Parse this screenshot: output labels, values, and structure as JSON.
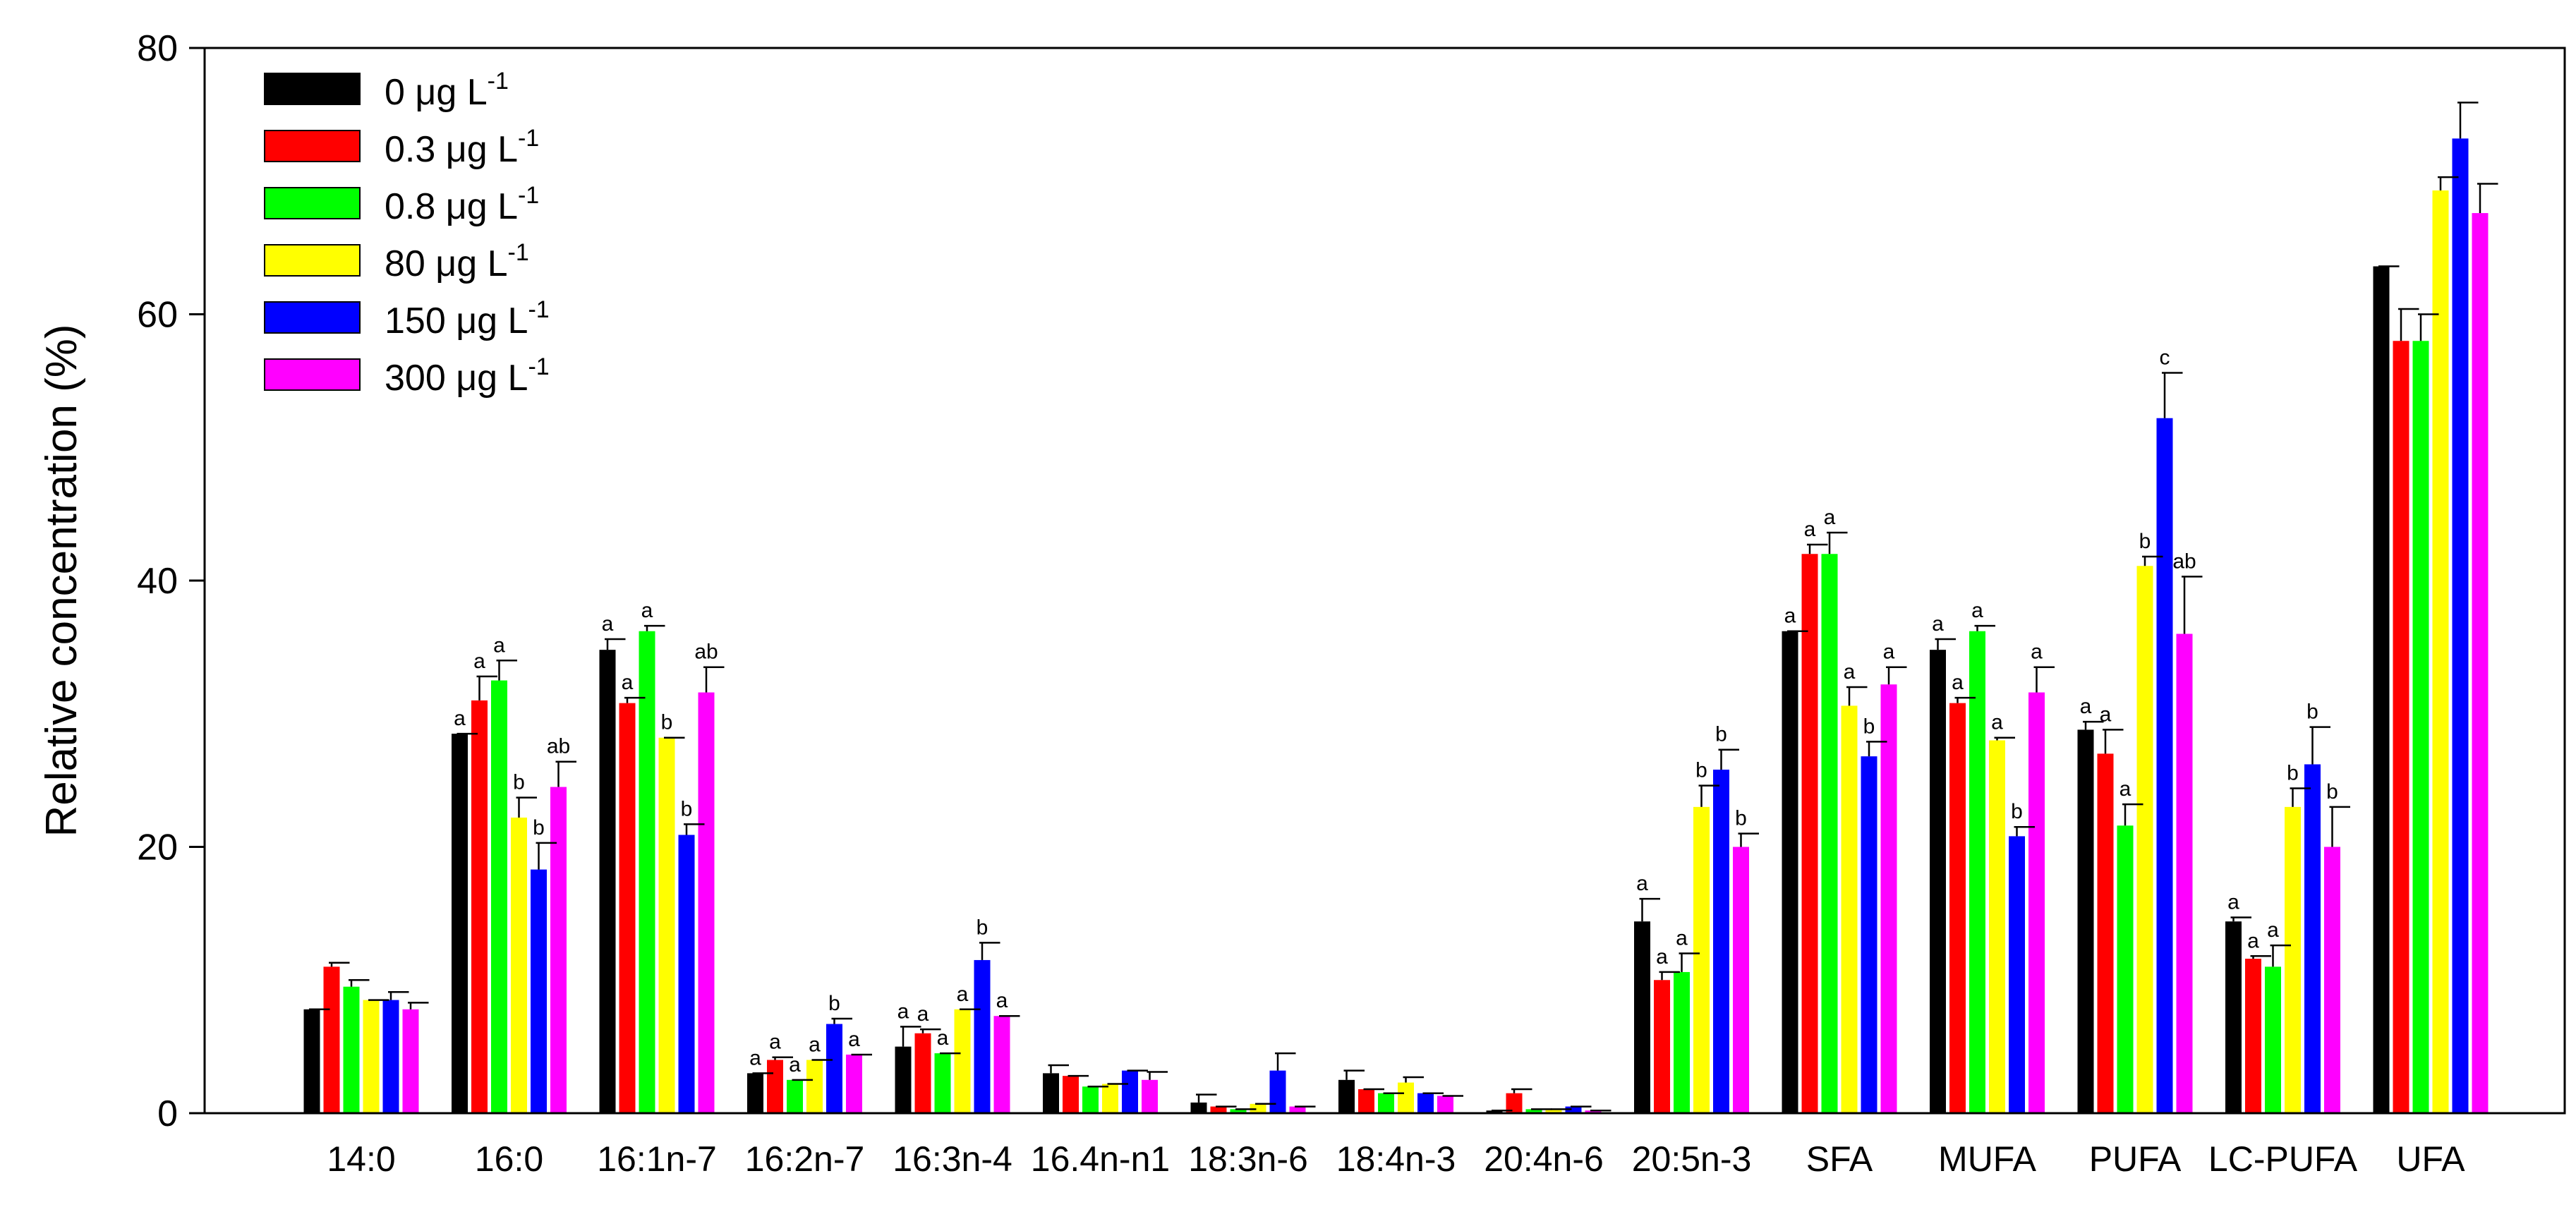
{
  "chart_data": {
    "type": "bar",
    "title": "",
    "xlabel": "",
    "ylabel": "Relative concentration (%)",
    "ylim": [
      0,
      80
    ],
    "yticks": [
      0,
      20,
      40,
      60,
      80
    ],
    "grid": false,
    "legend_position": "top-left",
    "categories": [
      "14:0",
      "16:0",
      "16:1n-7",
      "16:2n-7",
      "16:3n-4",
      "16.4n-n1",
      "18:3n-6",
      "18:4n-3",
      "20:4n-6",
      "20:5n-3",
      "SFA",
      "MUFA",
      "PUFA",
      "LC-PUFA",
      "UFA"
    ],
    "series": [
      {
        "name": "0 μg L-1",
        "legend_main": "0 μg L",
        "legend_sup": "-1",
        "color": "#000000",
        "values": [
          7.8,
          28.5,
          34.8,
          3.0,
          5.0,
          3.0,
          0.8,
          2.5,
          0.2,
          14.4,
          36.2,
          34.8,
          28.8,
          14.4,
          63.6
        ],
        "errors": [
          0.0,
          0.0,
          0.8,
          0.0,
          1.5,
          0.6,
          0.6,
          0.7,
          0.0,
          1.7,
          0.0,
          0.8,
          0.6,
          0.3,
          0.0
        ],
        "labels": [
          "",
          "a",
          "a",
          "a",
          "a",
          "",
          "",
          "",
          "",
          "a",
          "a",
          "a",
          "a",
          "a",
          ""
        ]
      },
      {
        "name": "0.3 μg L-1",
        "legend_main": "0.3 μg L",
        "legend_sup": "-1",
        "color": "#ff0000",
        "values": [
          11.0,
          31.0,
          30.8,
          4.0,
          6.0,
          2.8,
          0.5,
          1.8,
          1.5,
          10.0,
          42.0,
          30.8,
          27.0,
          11.6,
          58.0
        ],
        "errors": [
          0.3,
          1.8,
          0.4,
          0.2,
          0.3,
          0.0,
          0.0,
          0.0,
          0.3,
          0.6,
          0.7,
          0.4,
          1.8,
          0.2,
          2.4
        ],
        "labels": [
          "",
          "a",
          "a",
          "a",
          "a",
          "",
          "",
          "",
          "",
          "a",
          "a",
          "a",
          "a",
          "a",
          ""
        ]
      },
      {
        "name": "0.8 μg L-1",
        "legend_main": "0.8 μg L",
        "legend_sup": "-1",
        "color": "#00ff00",
        "values": [
          9.5,
          32.5,
          36.2,
          2.5,
          4.5,
          2.0,
          0.3,
          1.5,
          0.3,
          10.6,
          42.0,
          36.2,
          21.6,
          11.0,
          58.0
        ],
        "errors": [
          0.5,
          1.5,
          0.4,
          0.0,
          0.0,
          0.0,
          0.0,
          0.0,
          0.0,
          1.4,
          1.6,
          0.4,
          1.6,
          1.6,
          2.0
        ],
        "labels": [
          "",
          "a",
          "a",
          "a",
          "a",
          "",
          "",
          "",
          "",
          "a",
          "a",
          "a",
          "a",
          "a",
          ""
        ]
      },
      {
        "name": "80 μg L-1",
        "legend_main": "80 μg L",
        "legend_sup": "-1",
        "color": "#ffff00",
        "values": [
          8.5,
          22.2,
          28.2,
          4.0,
          7.8,
          2.2,
          0.7,
          2.3,
          0.3,
          23.0,
          30.6,
          28.0,
          41.1,
          23.0,
          69.3
        ],
        "errors": [
          0.0,
          1.5,
          0.0,
          0.0,
          0.0,
          0.0,
          0.0,
          0.4,
          0.0,
          1.6,
          1.4,
          0.2,
          0.7,
          1.4,
          1.0
        ],
        "labels": [
          "",
          "b",
          "b",
          "a",
          "a",
          "",
          "",
          "",
          "",
          "b",
          "a",
          "a",
          "b",
          "b",
          ""
        ]
      },
      {
        "name": "150 μg L-1",
        "legend_main": "150 μg L",
        "legend_sup": "-1",
        "color": "#0000ff",
        "values": [
          8.5,
          18.3,
          20.9,
          6.7,
          11.5,
          3.2,
          3.2,
          1.5,
          0.5,
          25.8,
          26.8,
          20.8,
          52.2,
          26.2,
          73.2
        ],
        "errors": [
          0.6,
          2.0,
          0.8,
          0.4,
          1.3,
          0.0,
          1.3,
          0.0,
          0.0,
          1.5,
          1.1,
          0.7,
          3.4,
          2.8,
          2.7
        ],
        "labels": [
          "",
          "b",
          "b",
          "b",
          "b",
          "",
          "",
          "",
          "",
          "b",
          "b",
          "b",
          "c",
          "b",
          ""
        ]
      },
      {
        "name": "300 μg L-1",
        "legend_main": "300 μg L",
        "legend_sup": "-1",
        "color": "#ff00ff",
        "values": [
          7.8,
          24.5,
          31.6,
          4.4,
          7.3,
          2.5,
          0.5,
          1.3,
          0.2,
          20.0,
          32.2,
          31.6,
          36.0,
          20.0,
          67.6
        ],
        "errors": [
          0.5,
          1.9,
          1.9,
          0.0,
          0.0,
          0.6,
          0.0,
          0.0,
          0.0,
          1.0,
          1.3,
          1.9,
          4.3,
          3.0,
          2.2
        ],
        "labels": [
          "",
          "ab",
          "ab",
          "a",
          "a",
          "",
          "",
          "",
          "",
          "b",
          "a",
          "a",
          "ab",
          "b",
          ""
        ]
      }
    ]
  }
}
